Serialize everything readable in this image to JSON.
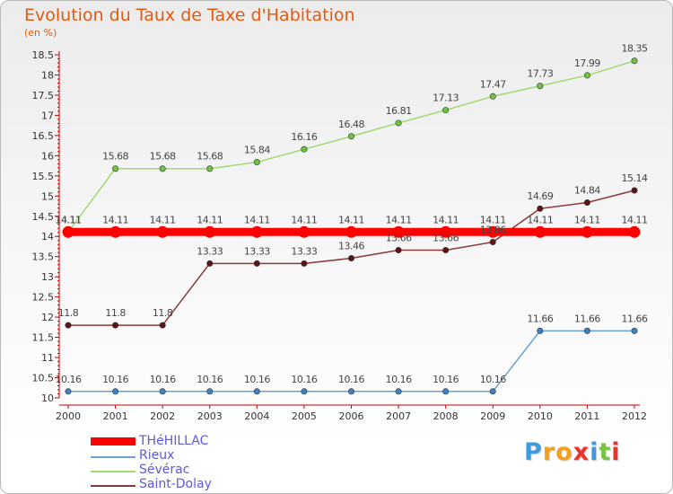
{
  "header": {
    "title": "Evolution du Taux de Taxe d'Habitation",
    "unit": "(en %)"
  },
  "logo": {
    "letters": [
      "P",
      "r",
      "o",
      "x",
      "i",
      "t",
      "i"
    ],
    "colors": [
      "#3d9be0",
      "#f5a01a",
      "#f5a01a",
      "#e8342a",
      "#3d9be0",
      "#7cc242",
      "#e8342a"
    ]
  },
  "chart_data": {
    "type": "line",
    "title": "Evolution du Taux de Taxe d'Habitation",
    "ylabel": "(en %)",
    "xlabel": "",
    "x": [
      "2000",
      "2001",
      "2002",
      "2003",
      "2004",
      "2005",
      "2006",
      "2007",
      "2008",
      "2009",
      "2010",
      "2011",
      "2012"
    ],
    "ylim": [
      10,
      18.5
    ],
    "yticks": [
      "10",
      "10.5",
      "11",
      "11.5",
      "12",
      "12.5",
      "13",
      "13.5",
      "14",
      "14.5",
      "15",
      "15.5",
      "16",
      "16.5",
      "17",
      "17.5",
      "18",
      "18.5"
    ],
    "grid": false,
    "legend_position": "bottom-left",
    "series": [
      {
        "name": "THéHILLAC",
        "color": "#ff0000",
        "style": "thick",
        "values": [
          14.11,
          14.11,
          14.11,
          14.11,
          14.11,
          14.11,
          14.11,
          14.11,
          14.11,
          14.11,
          14.11,
          14.11,
          14.11
        ],
        "labels": [
          "14.11",
          "14.11",
          "14.11",
          "14.11",
          "14.11",
          "14.11",
          "14.11",
          "14.11",
          "14.11",
          "14.11",
          "14.11",
          "14.11",
          "14.11"
        ]
      },
      {
        "name": "Rieux",
        "color": "#6a9fd4",
        "marker": "#3a82c4",
        "values": [
          10.16,
          10.16,
          10.16,
          10.16,
          10.16,
          10.16,
          10.16,
          10.16,
          10.16,
          10.16,
          11.66,
          11.66,
          11.66
        ],
        "labels": [
          "10.16",
          "10.16",
          "10.16",
          "10.16",
          "10.16",
          "10.16",
          "10.16",
          "10.16",
          "10.16",
          "10.16",
          "11.66",
          "11.66",
          "11.66"
        ]
      },
      {
        "name": "Sévérac",
        "color": "#a0da70",
        "marker": "#6cc640",
        "values": [
          14.11,
          15.68,
          15.68,
          15.68,
          15.84,
          16.16,
          16.48,
          16.81,
          17.13,
          17.47,
          17.73,
          17.99,
          18.35
        ],
        "labels": [
          "14.11",
          "15.68",
          "15.68",
          "15.68",
          "15.84",
          "16.16",
          "16.48",
          "16.81",
          "17.13",
          "17.47",
          "17.73",
          "17.99",
          "18.35"
        ]
      },
      {
        "name": "Saint-Dolay",
        "color": "#8a3a3a",
        "marker": "#5e1414",
        "values": [
          11.8,
          11.8,
          11.8,
          13.33,
          13.33,
          13.33,
          13.46,
          13.66,
          13.66,
          13.86,
          14.69,
          14.84,
          15.14
        ],
        "labels": [
          "11.8",
          "11.8",
          "11.8",
          "13.33",
          "13.33",
          "13.33",
          "13.46",
          "13.66",
          "13.66",
          "13.86",
          "14.69",
          "14.84",
          "15.14"
        ]
      }
    ]
  }
}
